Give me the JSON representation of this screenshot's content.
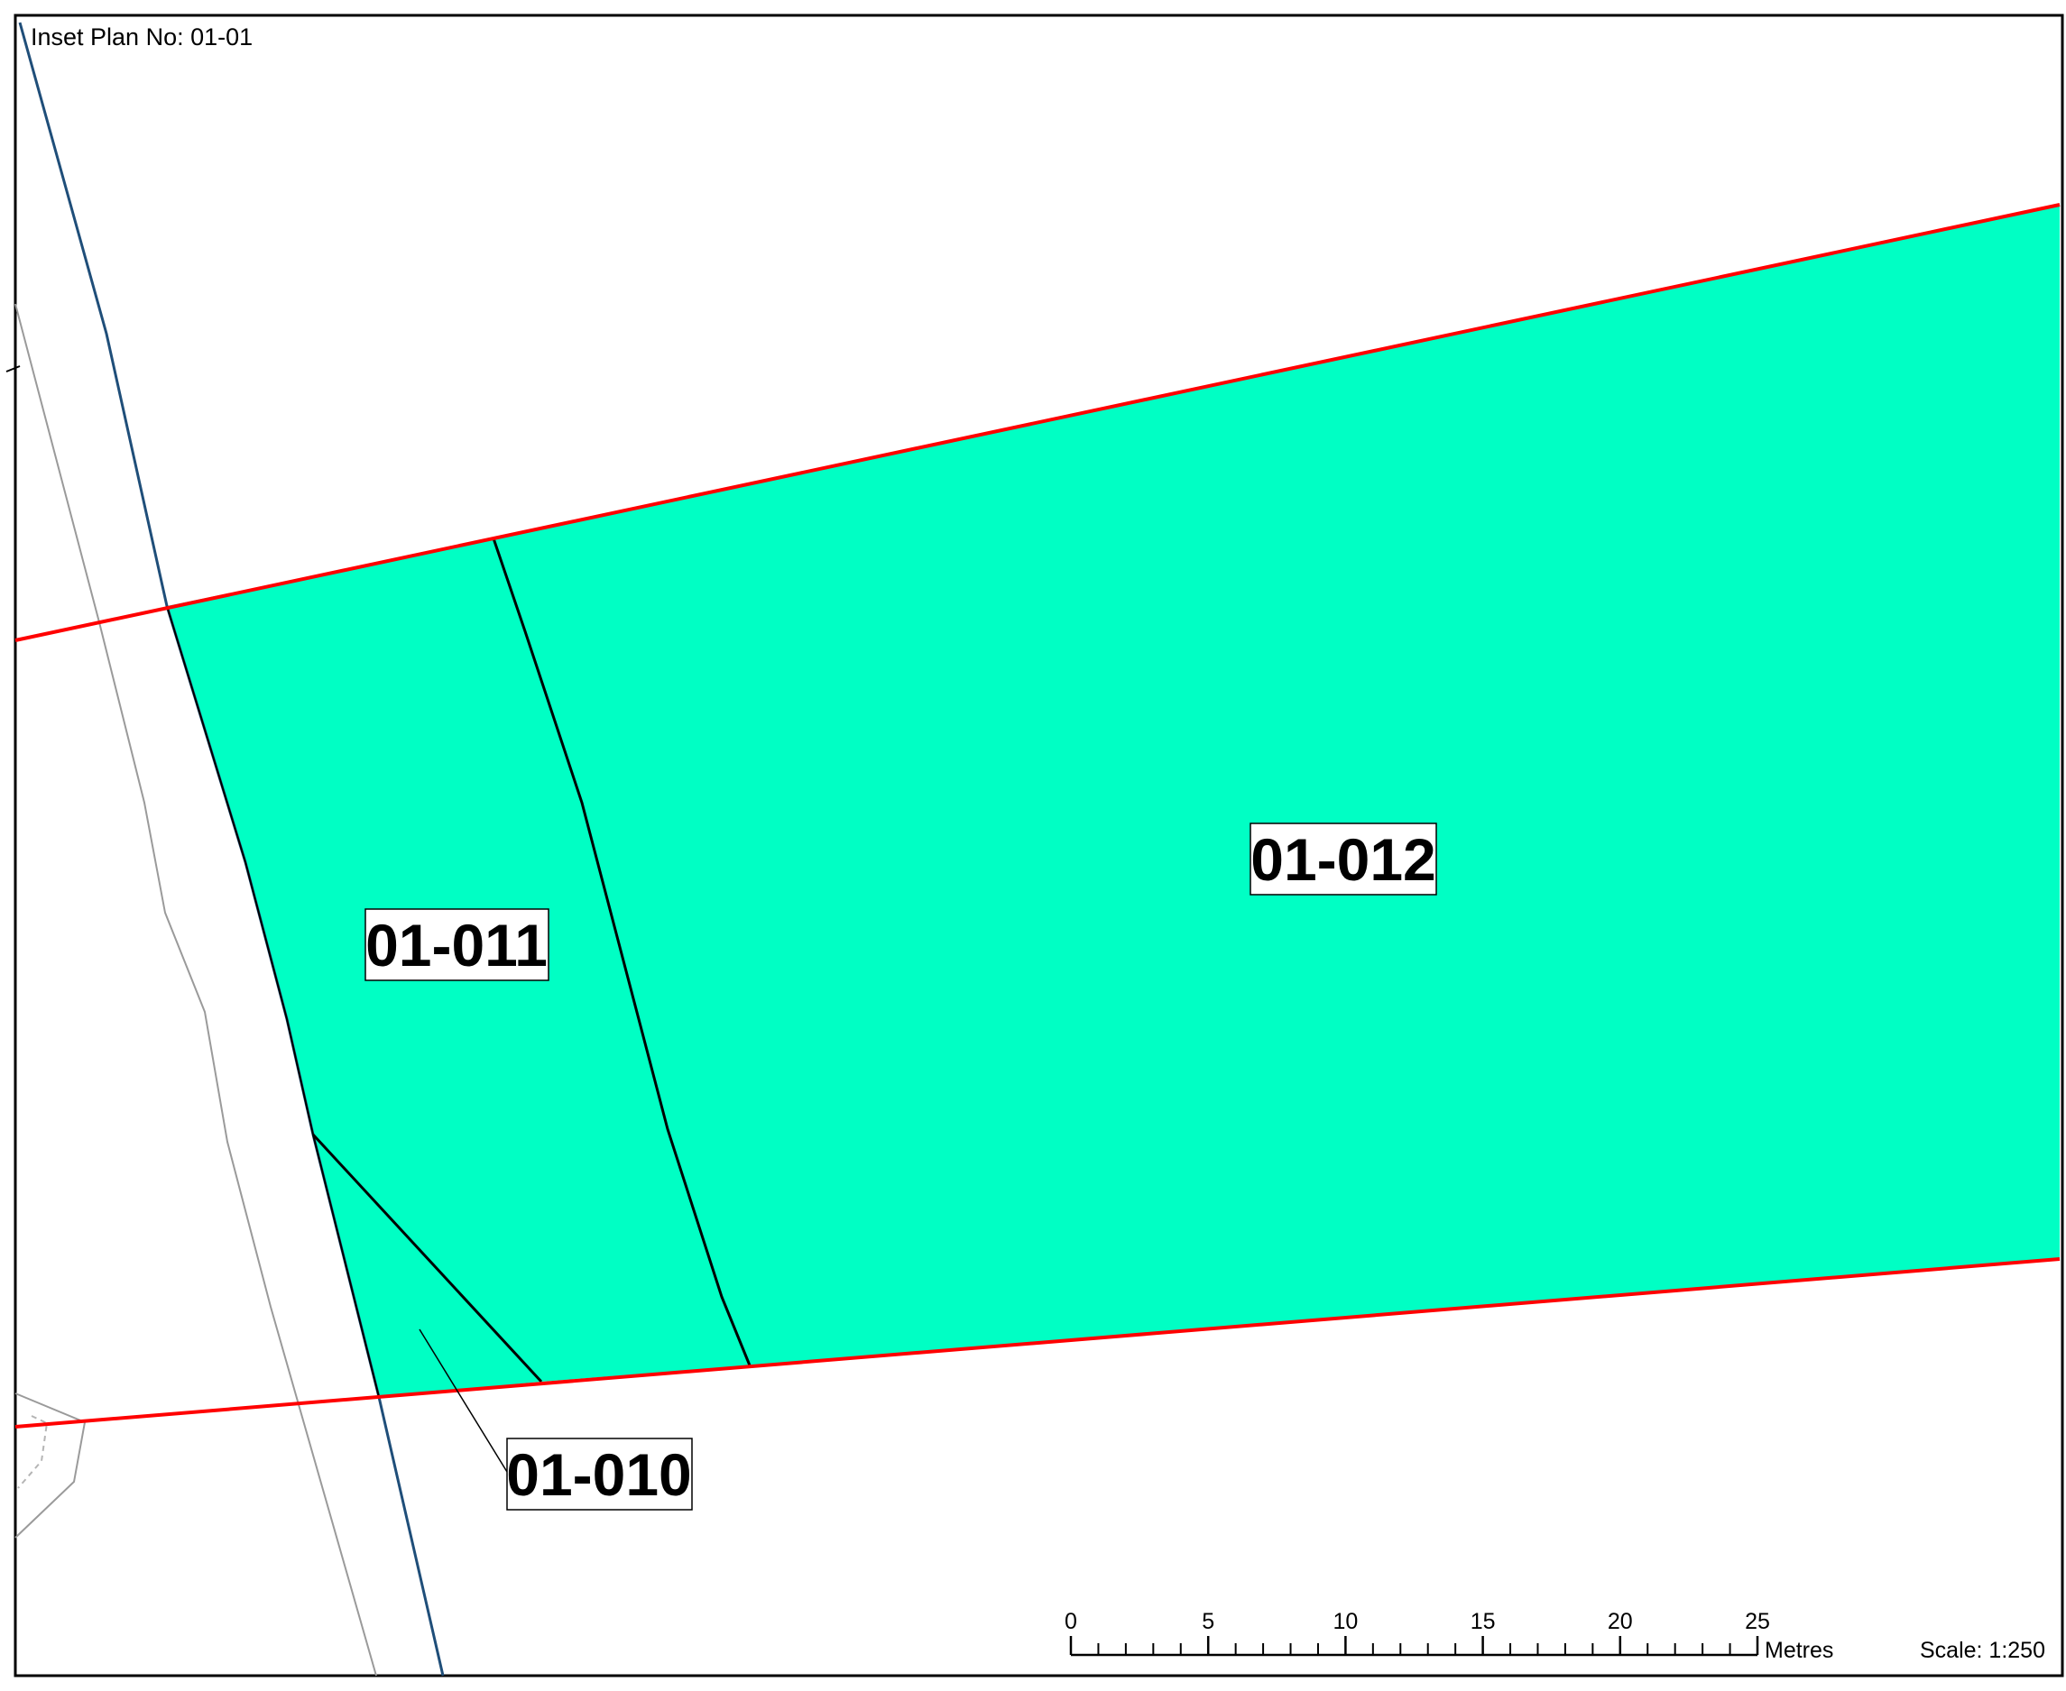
{
  "inset_plan": "Inset Plan No: 01-01",
  "parcels": [
    {
      "id": "01-010"
    },
    {
      "id": "01-011"
    },
    {
      "id": "01-012"
    }
  ],
  "scale_bar": {
    "ticks": [
      "0",
      "5",
      "10",
      "15",
      "20",
      "25"
    ],
    "unit": "Metres"
  },
  "scale": "Scale: 1:250",
  "colors": {
    "parcel_fill": "#00ffc4",
    "boundary": "#ff0000",
    "road_edge": "#1f4e79",
    "parcel_line": "#000000",
    "feature_line": "#9a9a9a"
  }
}
